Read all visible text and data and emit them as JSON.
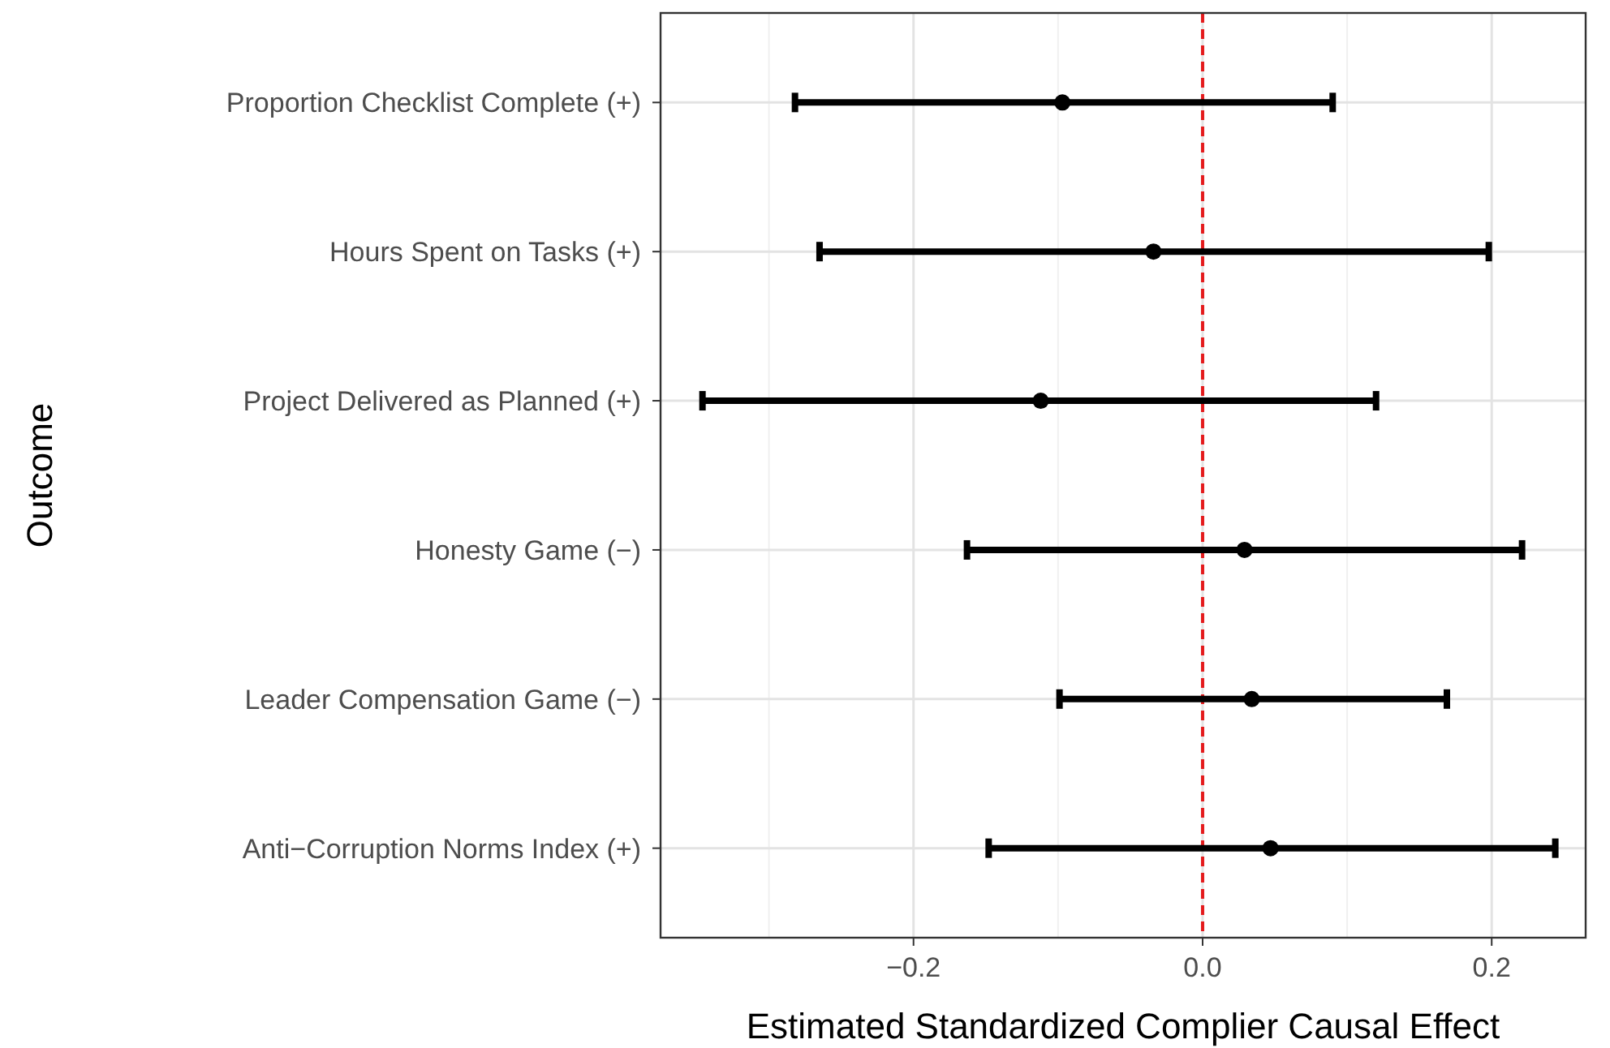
{
  "chart_data": {
    "type": "scatter",
    "orientation": "horizontal",
    "xlabel": "Estimated Standardized Complier Causal Effect",
    "ylabel": "Outcome",
    "categories": [
      "Proportion Checklist Complete (+)",
      "Hours Spent on Tasks (+)",
      "Project Delivered as Planned (+)",
      "Honesty Game (−)",
      "Leader Compensation Game (−)",
      "Anti−Corruption Norms Index (+)"
    ],
    "values": [
      -0.097,
      -0.034,
      -0.112,
      0.029,
      0.034,
      0.047
    ],
    "errors": [
      [
        -0.282,
        0.09
      ],
      [
        -0.265,
        0.198
      ],
      [
        -0.346,
        0.12
      ],
      [
        -0.163,
        0.221
      ],
      [
        -0.099,
        0.169
      ],
      [
        -0.148,
        0.244
      ]
    ],
    "color": "#000000",
    "marker": "circle",
    "xlim": [
      -0.375,
      0.265
    ],
    "xticks": [
      {
        "value": -0.2,
        "label": "−0.2"
      },
      {
        "value": 0,
        "label": "0.0"
      },
      {
        "value": 0.2,
        "label": "0.2"
      }
    ],
    "grid": true,
    "ref_lines": [
      {
        "axis": "x",
        "value": 0,
        "color": "#e41a1c",
        "line_style": "dashed"
      }
    ]
  }
}
